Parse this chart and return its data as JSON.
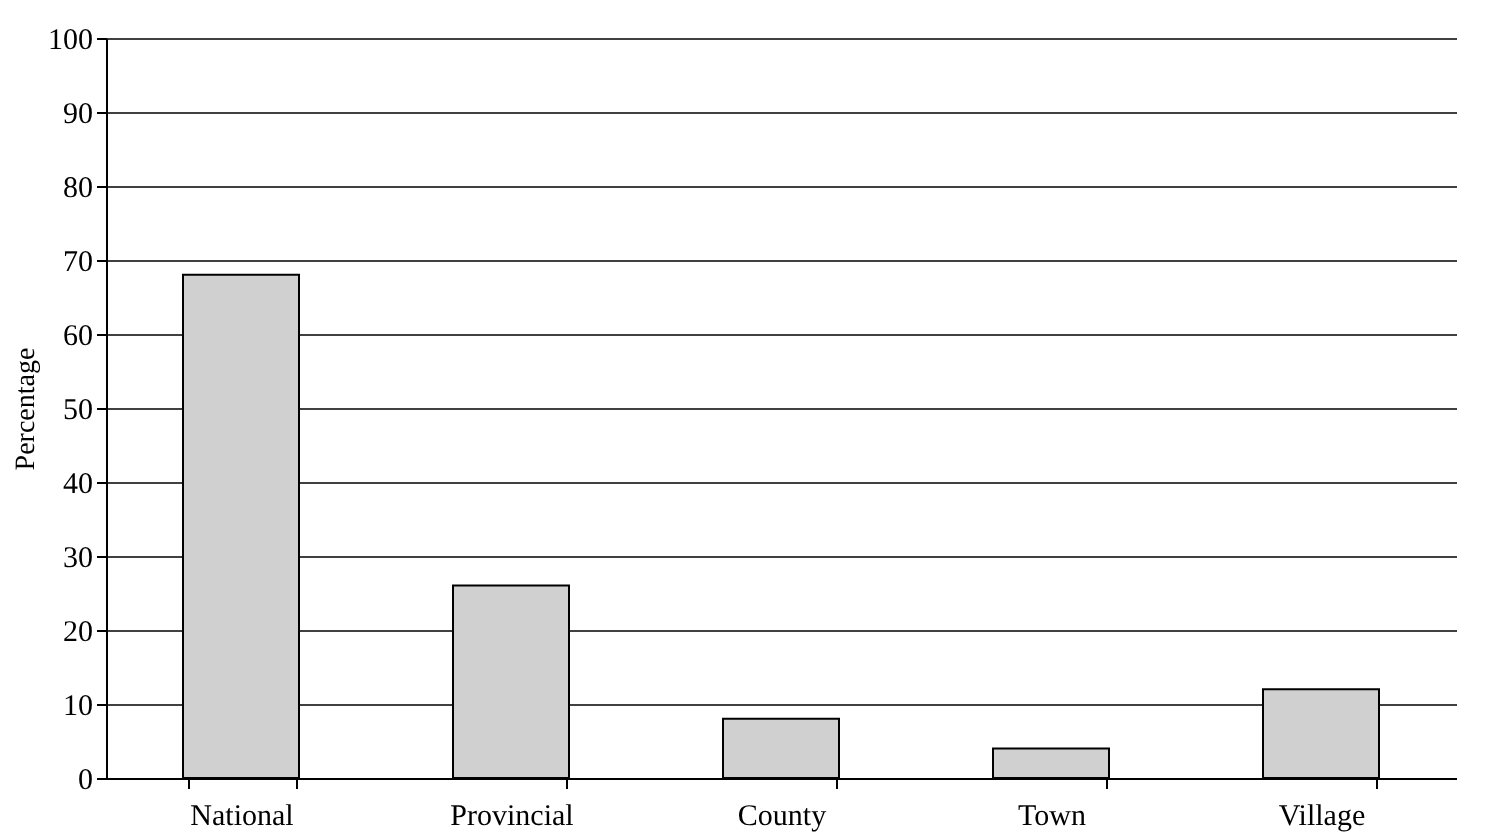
{
  "chart_data": {
    "type": "bar",
    "ylabel": "Percentage",
    "categories": [
      "National",
      "Provincial",
      "County",
      "Town",
      "Village"
    ],
    "values": [
      68,
      26,
      8,
      4,
      12
    ],
    "color": "#d0d0d0",
    "ylim": [
      0,
      100
    ],
    "yticks": [
      0,
      10,
      20,
      30,
      40,
      50,
      60,
      70,
      80,
      90,
      100
    ],
    "grid": "y"
  }
}
